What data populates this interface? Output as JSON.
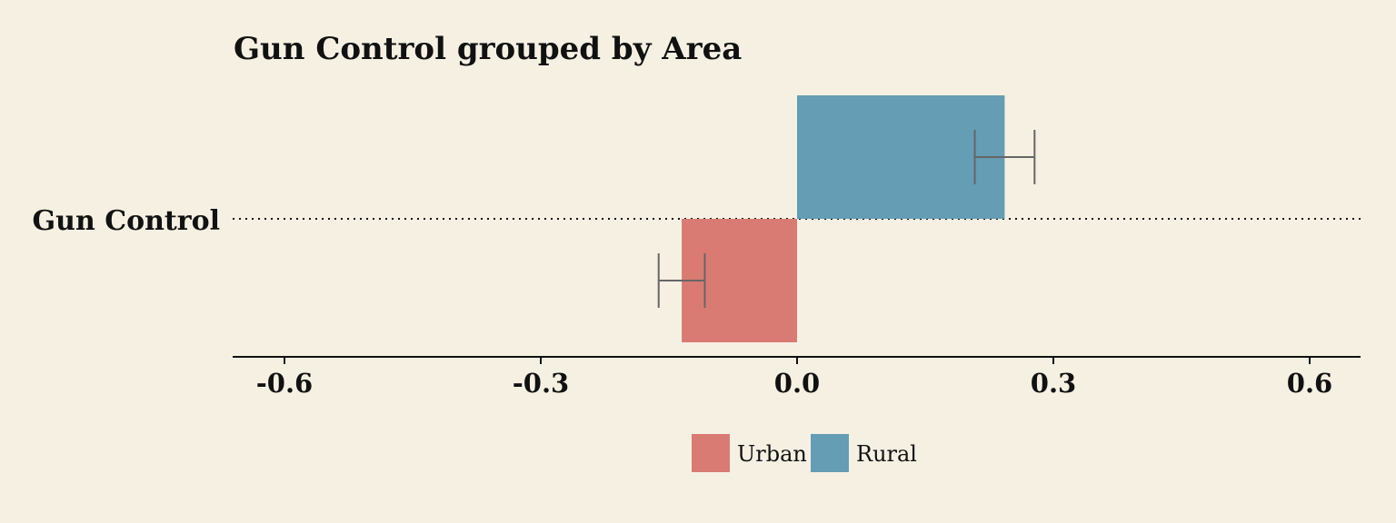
{
  "chart_data": {
    "type": "bar",
    "orientation": "horizontal",
    "title": "Gun Control grouped by Area",
    "categories": [
      "Gun Control"
    ],
    "xlim": [
      -0.6,
      0.6
    ],
    "x_ticks": [
      -0.6,
      -0.3,
      0.0,
      0.3,
      0.6
    ],
    "x_tick_labels": [
      "-0.6",
      "-0.3",
      "0.0",
      "0.3",
      "0.6"
    ],
    "legend_position": "bottom-center",
    "series": [
      {
        "name": "Urban",
        "color": "#d97b72",
        "values": [
          -0.135
        ],
        "error_low": [
          -0.162
        ],
        "error_high": [
          -0.108
        ]
      },
      {
        "name": "Rural",
        "color": "#649db4",
        "values": [
          0.243
        ],
        "error_low": [
          0.208
        ],
        "error_high": [
          0.278
        ]
      }
    ],
    "error_bar_color": "#666666",
    "baseline_style": "dotted"
  }
}
